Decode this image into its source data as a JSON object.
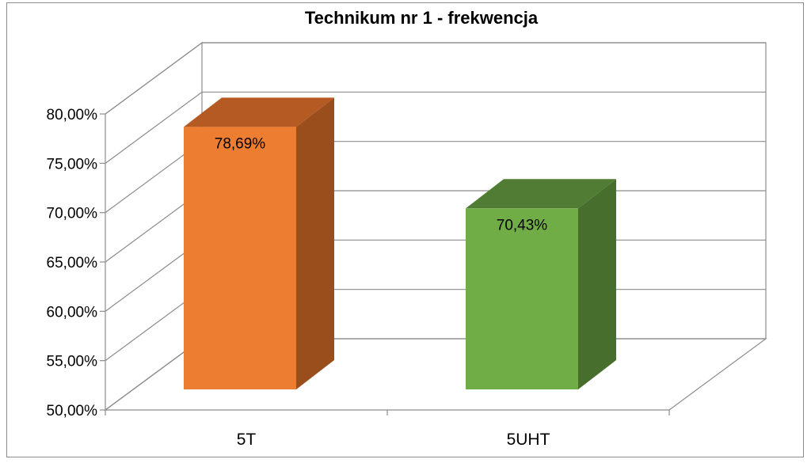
{
  "chart_data": {
    "type": "bar",
    "title": "Technikum nr 1 - frekwencja",
    "xlabel": "",
    "ylabel": "",
    "categories": [
      "5T",
      "5UHT"
    ],
    "values": [
      0.7869,
      0.7043
    ],
    "data_labels": [
      "78,69%",
      "70,43%"
    ],
    "ylim": [
      0.5,
      0.8
    ],
    "ytick_values": [
      0.5,
      0.55,
      0.6,
      0.65,
      0.7,
      0.75,
      0.8
    ],
    "ytick_labels": [
      "50,00%",
      "55,00%",
      "60,00%",
      "65,00%",
      "70,00%",
      "75,00%",
      "80,00%"
    ],
    "grid": true,
    "legend": "none",
    "style": "3d-column",
    "colors": {
      "bars": [
        {
          "front": "#ED7D31",
          "side": "#9A4E1C",
          "top": "#B45A22"
        },
        {
          "front": "#70AD47",
          "side": "#476E2C",
          "top": "#507D33"
        }
      ],
      "grid": "#8c8c8c",
      "axis": "#8c8c8c"
    }
  }
}
